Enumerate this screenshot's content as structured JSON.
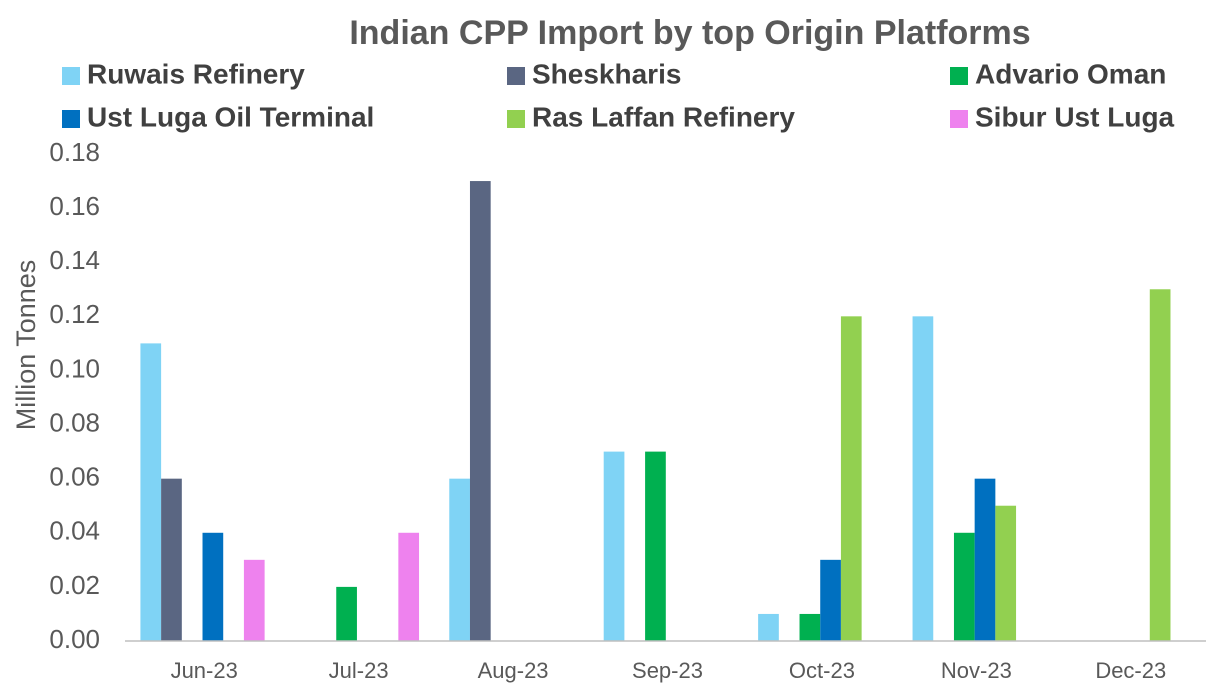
{
  "chart_data": {
    "type": "bar",
    "title": "Indian CPP Import by top Origin Platforms",
    "y_label": "Million Tonnes",
    "categories": [
      "Jun-23",
      "Jul-23",
      "Aug-23",
      "Sep-23",
      "Oct-23",
      "Nov-23",
      "Dec-23"
    ],
    "series": [
      {
        "name": "Ruwais Refinery",
        "color": "#7fd3f5",
        "values": [
          0.11,
          0,
          0.06,
          0.07,
          0.01,
          0.12,
          0
        ]
      },
      {
        "name": "Sheskharis",
        "color": "#5a6682",
        "values": [
          0.06,
          0,
          0.17,
          0,
          0,
          0,
          0
        ]
      },
      {
        "name": "Advario Oman",
        "color": "#00b050",
        "values": [
          0,
          0.02,
          0,
          0.07,
          0.01,
          0.04,
          0
        ]
      },
      {
        "name": "Ust Luga Oil Terminal",
        "color": "#0070c0",
        "values": [
          0.04,
          0,
          0,
          0,
          0.03,
          0.06,
          0
        ]
      },
      {
        "name": "Ras Laffan Refinery",
        "color": "#92d050",
        "values": [
          0,
          0,
          0,
          0,
          0.12,
          0.05,
          0.13
        ]
      },
      {
        "name": "Sibur Ust Luga",
        "color": "#ee82ee",
        "values": [
          0.03,
          0.04,
          0,
          0,
          0,
          0,
          0
        ]
      }
    ],
    "ylim": [
      0,
      0.18
    ],
    "yticks": [
      {
        "value": 0,
        "label": "0.00"
      },
      {
        "value": 0.02,
        "label": "0.02"
      },
      {
        "value": 0.04,
        "label": "0.04"
      },
      {
        "value": 0.06,
        "label": "0.06"
      },
      {
        "value": 0.08,
        "label": "0.08"
      },
      {
        "value": 0.1,
        "label": "0.10"
      },
      {
        "value": 0.12,
        "label": "0.12"
      },
      {
        "value": 0.14,
        "label": "0.14"
      },
      {
        "value": 0.16,
        "label": "0.16"
      },
      {
        "value": 0.18,
        "label": "0.18"
      }
    ],
    "grid": false,
    "legend": "top"
  }
}
